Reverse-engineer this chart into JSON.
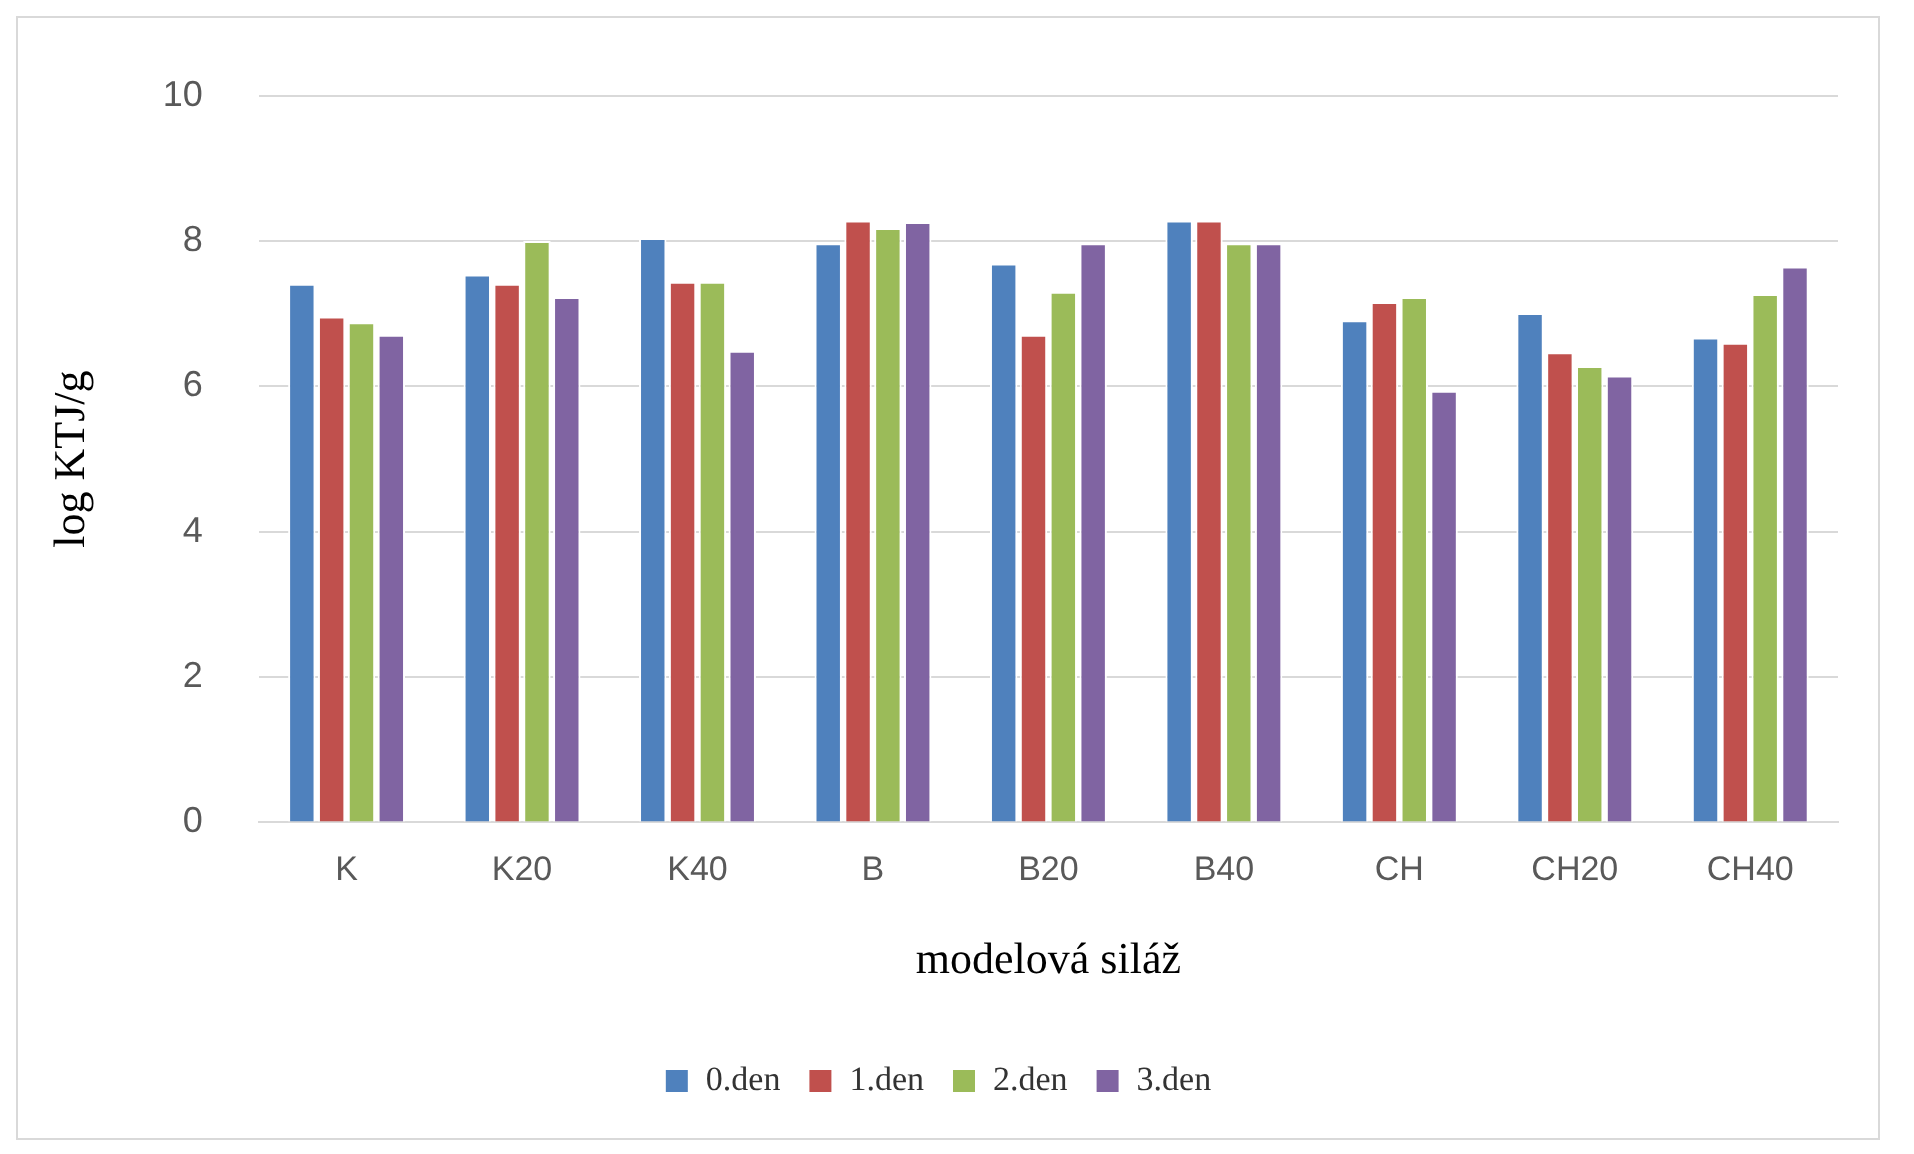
{
  "chart_data": {
    "type": "bar",
    "xlabel": "modelová siláž",
    "ylabel": "log KTJ/g",
    "categories": [
      "K",
      "K20",
      "K40",
      "B",
      "B20",
      "B40",
      "CH",
      "CH20",
      "CH40"
    ],
    "series": [
      {
        "name": "0.den",
        "color": "#4f81bd",
        "values": [
          7.41,
          7.54,
          8.04,
          7.97,
          7.69,
          8.28,
          6.91,
          7.01,
          6.67
        ]
      },
      {
        "name": "1.den",
        "color": "#c0504d",
        "values": [
          6.96,
          7.41,
          7.44,
          8.28,
          6.71,
          8.28,
          7.16,
          6.47,
          6.6
        ]
      },
      {
        "name": "2.den",
        "color": "#9bbb59",
        "values": [
          6.88,
          8.0,
          7.44,
          8.18,
          7.3,
          7.97,
          7.23,
          6.28,
          7.27
        ]
      },
      {
        "name": "3.den",
        "color": "#8064a2",
        "values": [
          6.71,
          7.23,
          6.49,
          8.26,
          7.97,
          7.97,
          5.94,
          6.15,
          7.65
        ]
      }
    ],
    "ylim": [
      0,
      10
    ],
    "yticks": [
      0,
      2,
      4,
      6,
      8,
      10
    ],
    "grid": "y",
    "legend": "bottom"
  }
}
